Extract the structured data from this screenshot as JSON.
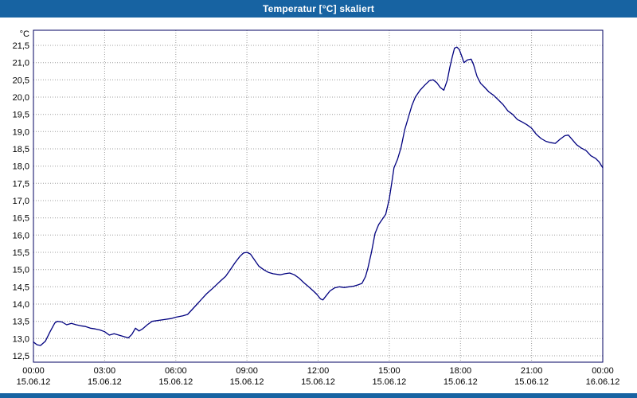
{
  "window": {
    "title": "Temperatur [°C] skaliert"
  },
  "colors": {
    "titlebar": "#1763a2",
    "titlebar_text": "#ffffff",
    "line": "#00007f",
    "grid": "#9c9c9c",
    "plot_border": "#000060",
    "background": "#ffffff"
  },
  "chart_data": {
    "type": "line",
    "title": "Temperatur [°C] skaliert",
    "y_unit": "°C",
    "ylim": [
      12.5,
      21.5
    ],
    "y_tick_step": 0.5,
    "y_tick_labels": [
      "21,5",
      "21,0",
      "20,5",
      "20,0",
      "19,5",
      "19,0",
      "18,5",
      "18,0",
      "17,5",
      "17,0",
      "16,5",
      "16,0",
      "15,5",
      "15,0",
      "14,5",
      "14,0",
      "13,5",
      "13,0",
      "12,5"
    ],
    "x_hours_range": [
      0,
      24
    ],
    "x_tick_hours": [
      0,
      3,
      6,
      9,
      12,
      15,
      18,
      21,
      24
    ],
    "x_tick_times": [
      "00:00",
      "03:00",
      "06:00",
      "09:00",
      "12:00",
      "15:00",
      "18:00",
      "21:00",
      "00:00"
    ],
    "x_tick_dates": [
      "15.06.12",
      "15.06.12",
      "15.06.12",
      "15.06.12",
      "15.06.12",
      "15.06.12",
      "15.06.12",
      "15.06.12",
      "16.06.12"
    ],
    "grid": "dotted",
    "legend": "none",
    "series": [
      {
        "name": "Temperatur",
        "points": [
          [
            0,
            12.9
          ],
          [
            0.15,
            12.82
          ],
          [
            0.3,
            12.8
          ],
          [
            0.5,
            12.92
          ],
          [
            0.7,
            13.2
          ],
          [
            0.9,
            13.45
          ],
          [
            1.0,
            13.5
          ],
          [
            1.2,
            13.48
          ],
          [
            1.4,
            13.4
          ],
          [
            1.6,
            13.44
          ],
          [
            1.8,
            13.4
          ],
          [
            2.0,
            13.37
          ],
          [
            2.2,
            13.35
          ],
          [
            2.4,
            13.3
          ],
          [
            2.6,
            13.28
          ],
          [
            2.8,
            13.25
          ],
          [
            3.0,
            13.2
          ],
          [
            3.2,
            13.1
          ],
          [
            3.4,
            13.14
          ],
          [
            3.6,
            13.1
          ],
          [
            3.8,
            13.06
          ],
          [
            4.0,
            13.02
          ],
          [
            4.15,
            13.12
          ],
          [
            4.3,
            13.3
          ],
          [
            4.45,
            13.22
          ],
          [
            4.6,
            13.28
          ],
          [
            4.8,
            13.4
          ],
          [
            5.0,
            13.5
          ],
          [
            5.2,
            13.52
          ],
          [
            5.5,
            13.55
          ],
          [
            5.8,
            13.58
          ],
          [
            6.0,
            13.62
          ],
          [
            6.3,
            13.66
          ],
          [
            6.5,
            13.7
          ],
          [
            6.7,
            13.85
          ],
          [
            6.9,
            14.0
          ],
          [
            7.1,
            14.15
          ],
          [
            7.3,
            14.3
          ],
          [
            7.5,
            14.42
          ],
          [
            7.7,
            14.55
          ],
          [
            7.9,
            14.68
          ],
          [
            8.1,
            14.8
          ],
          [
            8.3,
            15.0
          ],
          [
            8.5,
            15.2
          ],
          [
            8.7,
            15.38
          ],
          [
            8.85,
            15.48
          ],
          [
            9.0,
            15.5
          ],
          [
            9.15,
            15.45
          ],
          [
            9.3,
            15.3
          ],
          [
            9.5,
            15.1
          ],
          [
            9.7,
            15.0
          ],
          [
            9.9,
            14.92
          ],
          [
            10.1,
            14.88
          ],
          [
            10.4,
            14.85
          ],
          [
            10.6,
            14.88
          ],
          [
            10.8,
            14.9
          ],
          [
            11.0,
            14.85
          ],
          [
            11.2,
            14.75
          ],
          [
            11.4,
            14.62
          ],
          [
            11.6,
            14.5
          ],
          [
            11.8,
            14.38
          ],
          [
            11.95,
            14.28
          ],
          [
            12.1,
            14.15
          ],
          [
            12.2,
            14.12
          ],
          [
            12.35,
            14.25
          ],
          [
            12.5,
            14.38
          ],
          [
            12.7,
            14.47
          ],
          [
            12.9,
            14.5
          ],
          [
            13.1,
            14.48
          ],
          [
            13.3,
            14.5
          ],
          [
            13.5,
            14.52
          ],
          [
            13.7,
            14.56
          ],
          [
            13.85,
            14.6
          ],
          [
            14.0,
            14.8
          ],
          [
            14.1,
            15.05
          ],
          [
            14.25,
            15.5
          ],
          [
            14.4,
            16.05
          ],
          [
            14.55,
            16.3
          ],
          [
            14.7,
            16.45
          ],
          [
            14.85,
            16.6
          ],
          [
            15.0,
            17.05
          ],
          [
            15.1,
            17.5
          ],
          [
            15.2,
            17.95
          ],
          [
            15.35,
            18.2
          ],
          [
            15.5,
            18.55
          ],
          [
            15.65,
            19.05
          ],
          [
            15.8,
            19.4
          ],
          [
            15.95,
            19.75
          ],
          [
            16.1,
            20.0
          ],
          [
            16.3,
            20.2
          ],
          [
            16.5,
            20.35
          ],
          [
            16.7,
            20.48
          ],
          [
            16.85,
            20.5
          ],
          [
            17.0,
            20.42
          ],
          [
            17.15,
            20.28
          ],
          [
            17.3,
            20.2
          ],
          [
            17.45,
            20.5
          ],
          [
            17.55,
            20.85
          ],
          [
            17.65,
            21.15
          ],
          [
            17.75,
            21.42
          ],
          [
            17.85,
            21.45
          ],
          [
            17.95,
            21.38
          ],
          [
            18.05,
            21.2
          ],
          [
            18.15,
            21.0
          ],
          [
            18.3,
            21.08
          ],
          [
            18.45,
            21.1
          ],
          [
            18.55,
            20.95
          ],
          [
            18.7,
            20.6
          ],
          [
            18.85,
            20.4
          ],
          [
            19.0,
            20.3
          ],
          [
            19.2,
            20.15
          ],
          [
            19.4,
            20.05
          ],
          [
            19.6,
            19.92
          ],
          [
            19.8,
            19.78
          ],
          [
            20.0,
            19.6
          ],
          [
            20.2,
            19.5
          ],
          [
            20.4,
            19.35
          ],
          [
            20.6,
            19.28
          ],
          [
            20.8,
            19.2
          ],
          [
            21.0,
            19.1
          ],
          [
            21.2,
            18.92
          ],
          [
            21.4,
            18.8
          ],
          [
            21.6,
            18.72
          ],
          [
            21.8,
            18.68
          ],
          [
            22.0,
            18.66
          ],
          [
            22.2,
            18.78
          ],
          [
            22.4,
            18.88
          ],
          [
            22.55,
            18.9
          ],
          [
            22.7,
            18.78
          ],
          [
            22.9,
            18.62
          ],
          [
            23.1,
            18.52
          ],
          [
            23.3,
            18.45
          ],
          [
            23.5,
            18.3
          ],
          [
            23.7,
            18.22
          ],
          [
            23.85,
            18.12
          ],
          [
            24.0,
            17.95
          ]
        ]
      }
    ]
  }
}
